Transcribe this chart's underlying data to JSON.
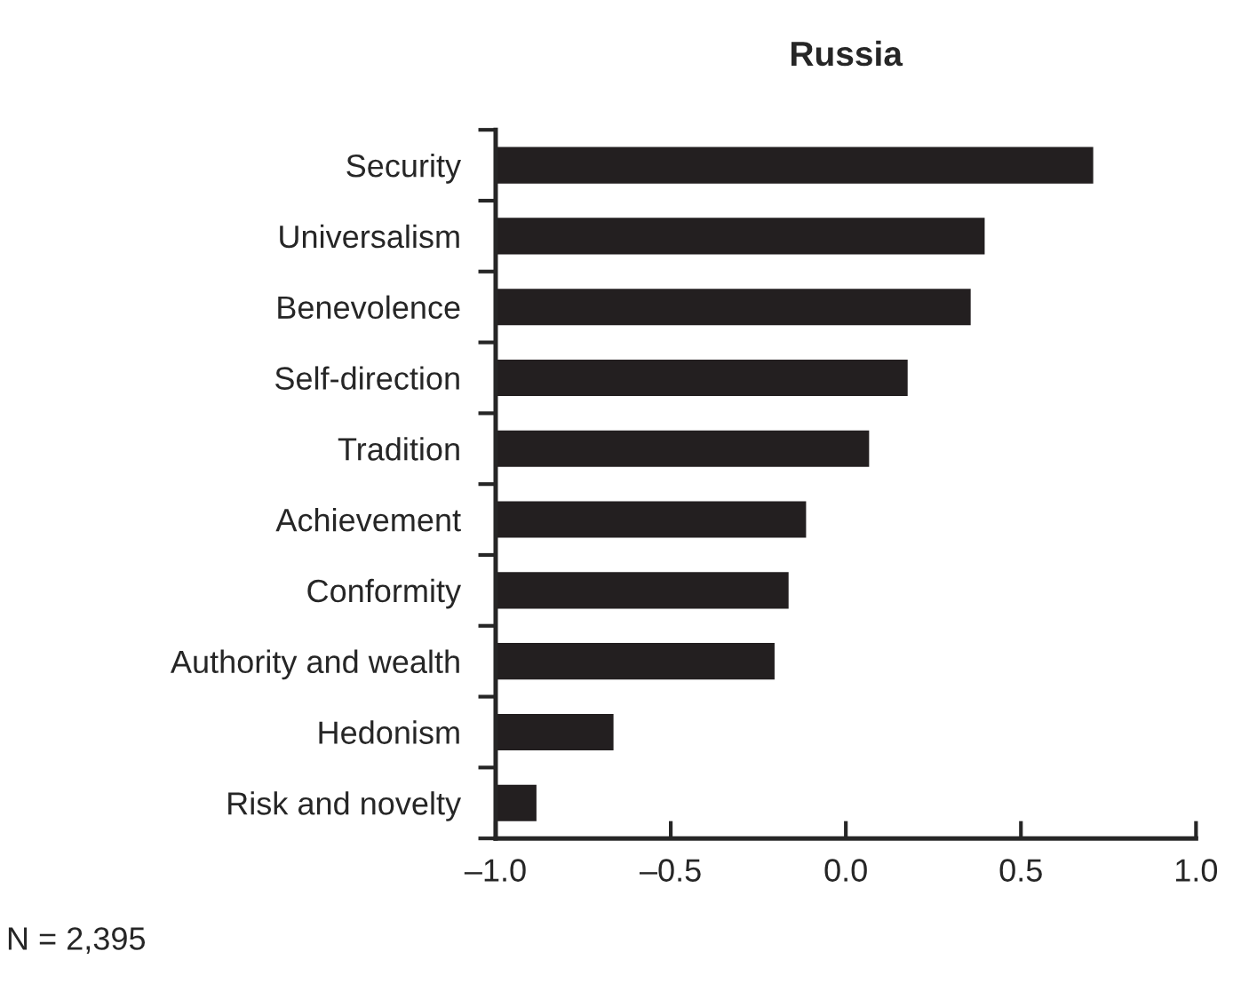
{
  "chart_data": {
    "type": "bar",
    "orientation": "horizontal",
    "title": "Russia",
    "categories": [
      "Security",
      "Universalism",
      "Benevolence",
      "Self-direction",
      "Tradition",
      "Achievement",
      "Conformity",
      "Authority and wealth",
      "Hedonism",
      "Risk and novelty"
    ],
    "values": [
      1.71,
      1.4,
      1.36,
      1.18,
      1.07,
      0.89,
      0.84,
      0.8,
      0.34,
      0.12
    ],
    "base": [
      -1,
      -1,
      -1,
      -1,
      -1,
      -1,
      -1,
      -1,
      -1,
      -1
    ],
    "color": "#231f20",
    "xlim": [
      -1,
      1
    ],
    "xticks": [
      {
        "value": -1,
        "label": "–1.0"
      },
      {
        "value": -0.5,
        "label": "–0.5"
      },
      {
        "value": 0,
        "label": "0.0"
      },
      {
        "value": 0.5,
        "label": "0.5"
      },
      {
        "value": 1,
        "label": "1.0"
      }
    ],
    "grid": false,
    "legend": false,
    "annotations": [
      "N = 2,395"
    ]
  }
}
